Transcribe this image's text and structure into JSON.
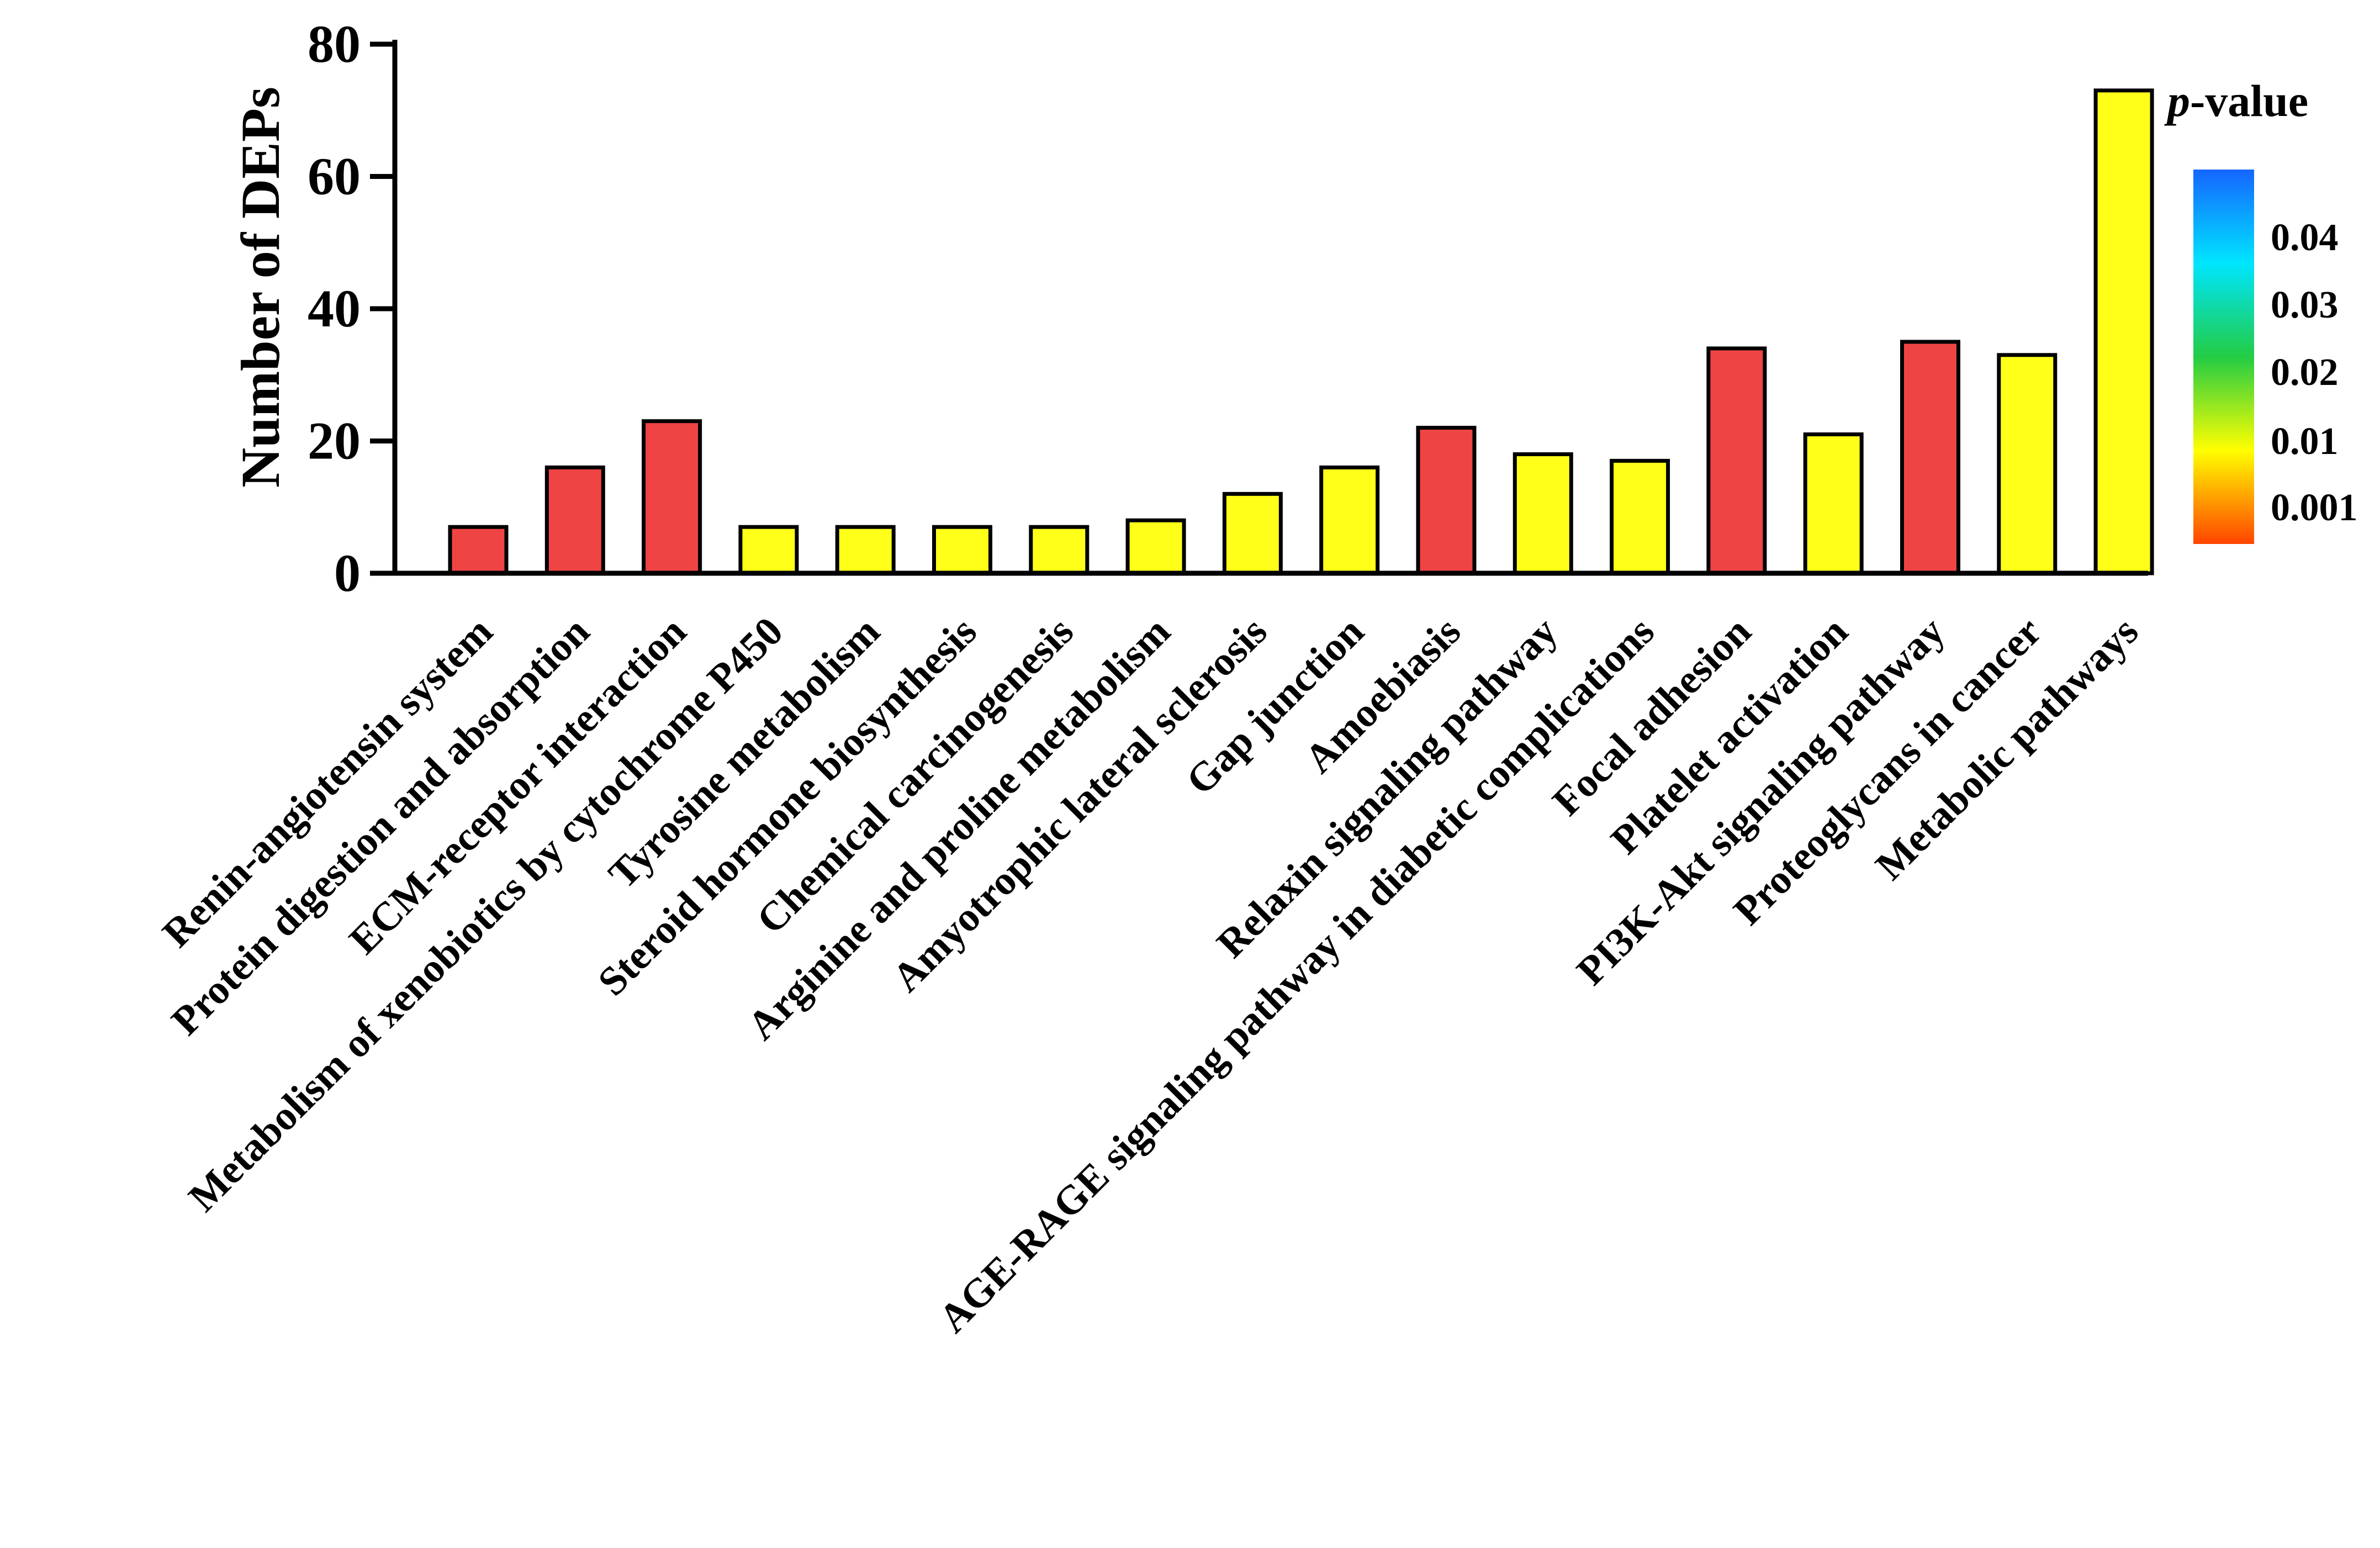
{
  "chart_data": {
    "type": "bar",
    "title": "",
    "xlabel": "",
    "ylabel": "Number of DEPs",
    "ylim": [
      0,
      80
    ],
    "yticks": [
      "0",
      "20",
      "40",
      "60",
      "80"
    ],
    "grid": false,
    "categories": [
      "Renin-angiotensin system",
      "Protein digestion and absorption",
      "ECM-receptor interaction",
      "Metabolism of xenobiotics by cytochrome P450",
      "Tyrosine metabolism",
      "Steroid hormone biosynthesis",
      "Chemical carcinogenesis",
      "Arginine and proline metabolism",
      "Amyotrophic lateral sclerosis",
      "Gap junction",
      "Amoebiasis",
      "Relaxin signaling pathway",
      "AGE-RAGE signaling pathway in diabetic complications",
      "Focal adhesion",
      "Platelet activation",
      "PI3K-Akt signaling pathway",
      "Proteoglycans in cancer",
      "Metabolic pathways"
    ],
    "values": [
      7,
      16,
      23,
      7,
      7,
      7,
      7,
      8,
      12,
      16,
      22,
      18,
      17,
      34,
      21,
      35,
      33,
      73
    ],
    "bar_colors": [
      "#ef4444",
      "#ef4444",
      "#ef4444",
      "#ffff1a",
      "#ffff1a",
      "#ffff1a",
      "#ffff1a",
      "#ffff1a",
      "#ffff1a",
      "#ffff1a",
      "#ef4444",
      "#ffff1a",
      "#ffff1a",
      "#ef4444",
      "#ffff1a",
      "#ef4444",
      "#ffff1a",
      "#ffff1a"
    ],
    "legend": {
      "title_italic": "p",
      "title_rest": "-value",
      "ticks": [
        "0.04",
        "0.03",
        "0.02",
        "0.01",
        "0.001"
      ],
      "colors": [
        "#1565ff",
        "#00e5ff",
        "#22cc44",
        "#ffff00",
        "#ff4400"
      ],
      "placement": "top-right"
    }
  }
}
